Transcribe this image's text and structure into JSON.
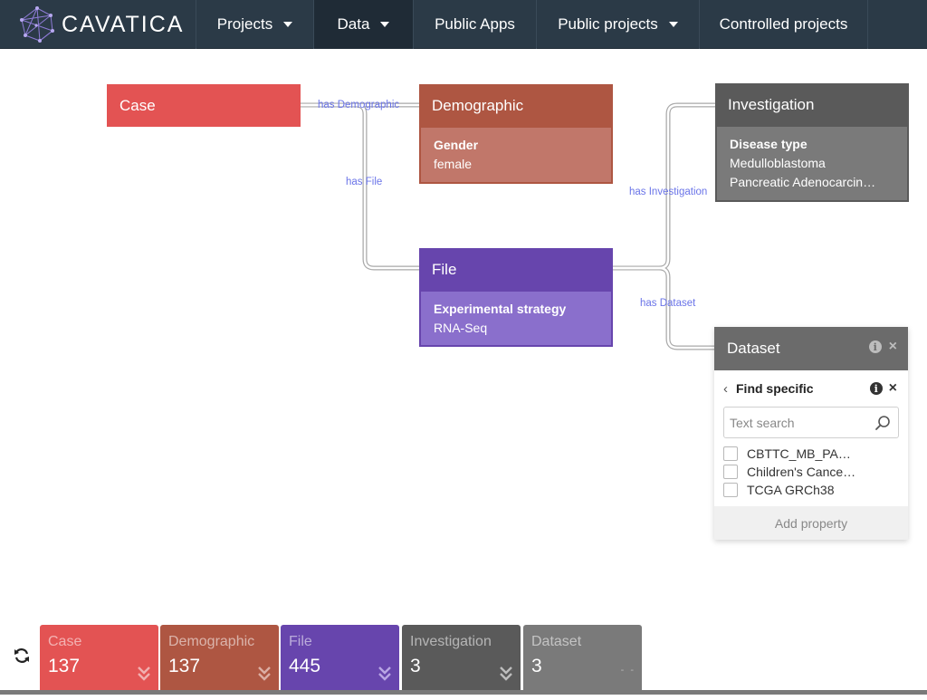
{
  "navbar": {
    "brand": "CAVATICA",
    "items": [
      {
        "label": "Projects",
        "dropdown": true
      },
      {
        "label": "Data",
        "dropdown": true,
        "active": true
      },
      {
        "label": "Public Apps",
        "dropdown": false
      },
      {
        "label": "Public projects",
        "dropdown": true
      },
      {
        "label": "Controlled projects",
        "dropdown": false
      }
    ]
  },
  "graph": {
    "edges": {
      "has_demographic": "has Demographic",
      "has_file": "has File",
      "has_investigation": "has Investigation",
      "has_dataset": "has Dataset"
    },
    "nodes": {
      "case": {
        "title": "Case",
        "color": "#e35353"
      },
      "demographic": {
        "title": "Demographic",
        "property": "Gender",
        "values": [
          "female"
        ],
        "color": "#ae5642"
      },
      "file": {
        "title": "File",
        "property": "Experimental strategy",
        "values": [
          "RNA-Seq"
        ],
        "color": "#6745ad"
      },
      "investigation": {
        "title": "Investigation",
        "property": "Disease type",
        "values": [
          "Medulloblastoma",
          "Pancreatic Adenocarcin…"
        ],
        "color": "#5a5a5a"
      },
      "dataset": {
        "title": "Dataset",
        "find_label": "Find specific",
        "search_placeholder": "Text search",
        "options": [
          "CBTTC_MB_PA…",
          "Children's Cance…",
          "TCGA GRCh38"
        ],
        "add_property": "Add property",
        "color": "#6b6b6b"
      }
    }
  },
  "counts": [
    {
      "label": "Case",
      "count": "137",
      "color": "#e35353",
      "expandable": true
    },
    {
      "label": "Demographic",
      "count": "137",
      "color": "#ae5642",
      "expandable": true
    },
    {
      "label": "File",
      "count": "445",
      "color": "#6745ad",
      "expandable": true
    },
    {
      "label": "Investigation",
      "count": "3",
      "color": "#5a5a5a",
      "expandable": true
    },
    {
      "label": "Dataset",
      "count": "3",
      "color": "#7a7a7a",
      "expandable": false
    }
  ],
  "icons": [
    "cavatica-logo-icon",
    "caret-down-icon",
    "info-icon",
    "close-icon",
    "chevron-left-icon",
    "search-icon",
    "refresh-icon",
    "double-chevron-down-icon"
  ]
}
